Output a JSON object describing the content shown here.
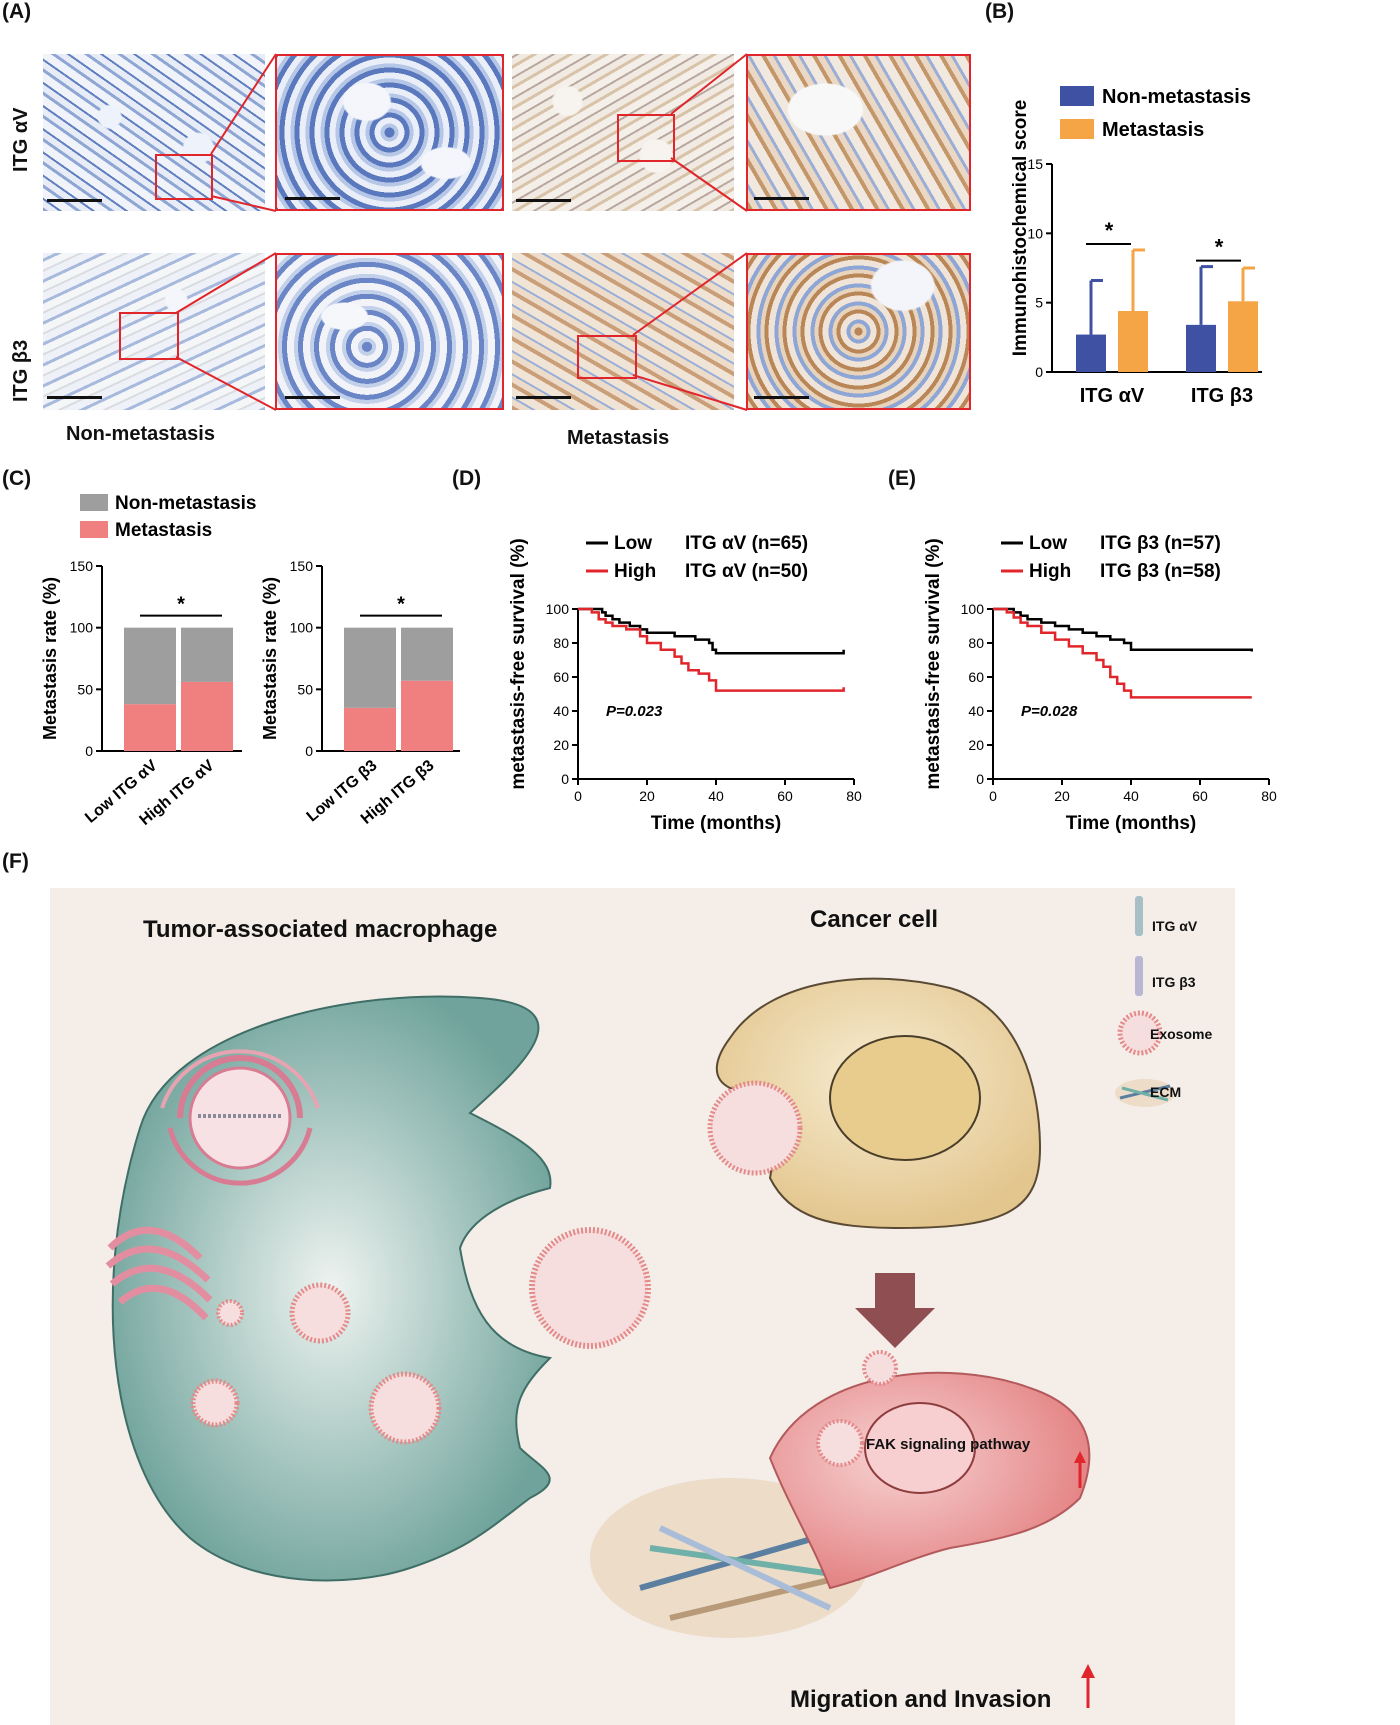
{
  "panels": {
    "a": "(A)",
    "b": "(B)",
    "c": "(C)",
    "d": "(D)",
    "e": "(E)",
    "f": "(F)"
  },
  "panel_a": {
    "row_labels": [
      "ITG αV",
      "ITG β3"
    ],
    "captions": [
      "Non-metastasis",
      "Metastasis"
    ],
    "colors": {
      "blue_stain": "#6d8bc4",
      "brown_stain": "#c9a074",
      "zoom_box": "#e0262b"
    }
  },
  "chart_data": [
    {
      "id": "B",
      "type": "bar",
      "categories": [
        "ITG αV",
        "ITG β3"
      ],
      "series": [
        {
          "name": "Non-metastasis",
          "values": [
            2.7,
            3.4
          ],
          "error": [
            3.9,
            4.2
          ],
          "color": "#3f51a3"
        },
        {
          "name": "Metastasis",
          "values": [
            4.4,
            5.1
          ],
          "error": [
            4.4,
            2.4
          ],
          "color": "#f5a545"
        }
      ],
      "ylabel": "Immunohistochemical score",
      "ylim": [
        0,
        15
      ],
      "yticks": [
        0,
        5,
        10,
        15
      ],
      "significance": [
        "*",
        "*"
      ],
      "legend": "top"
    },
    {
      "id": "C1",
      "type": "bar",
      "stacked": true,
      "categories": [
        "Low ITG αV",
        "High ITG αV"
      ],
      "series": [
        {
          "name": "Metastasis",
          "values": [
            38,
            56
          ],
          "color": "#f08080"
        },
        {
          "name": "Non-metastasis",
          "values": [
            62,
            44
          ],
          "color": "#9e9e9e"
        }
      ],
      "ylabel": "Metastasis rate (%)",
      "ylim": [
        0,
        150
      ],
      "yticks": [
        0,
        50,
        100,
        150
      ],
      "significance": "*",
      "legend_labels": [
        "Non-metastasis",
        "Metastasis"
      ]
    },
    {
      "id": "C2",
      "type": "bar",
      "stacked": true,
      "categories": [
        "Low ITG β3",
        "High ITG β3"
      ],
      "series": [
        {
          "name": "Metastasis",
          "values": [
            35,
            57
          ],
          "color": "#f08080"
        },
        {
          "name": "Non-metastasis",
          "values": [
            65,
            43
          ],
          "color": "#9e9e9e"
        }
      ],
      "ylabel": "Metastasis rate (%)",
      "ylim": [
        0,
        150
      ],
      "yticks": [
        0,
        50,
        100,
        150
      ],
      "significance": "*"
    },
    {
      "id": "D",
      "type": "line",
      "xlabel": "Time (months)",
      "ylabel": "metastasis-free survival (%)",
      "xlim": [
        0,
        80
      ],
      "ylim": [
        0,
        100
      ],
      "xticks": [
        0,
        20,
        40,
        60,
        80
      ],
      "yticks": [
        0,
        20,
        40,
        60,
        80,
        100
      ],
      "annotation": "P=0.023",
      "series": [
        {
          "name": "Low",
          "label": "ITG αV (n=65)",
          "color": "#000000",
          "x": [
            0,
            7,
            8,
            10,
            12,
            15,
            18,
            20,
            24,
            28,
            34,
            38,
            39,
            40,
            77
          ],
          "y": [
            100,
            98,
            96,
            94,
            92,
            90,
            88,
            86,
            86,
            84,
            82,
            80,
            76,
            74,
            76
          ]
        },
        {
          "name": "High",
          "label": "ITG αV (n=50)",
          "color": "#e0262b",
          "x": [
            0,
            4,
            6,
            8,
            10,
            14,
            18,
            20,
            24,
            28,
            30,
            32,
            35,
            38,
            40,
            77
          ],
          "y": [
            100,
            98,
            94,
            92,
            90,
            88,
            84,
            80,
            76,
            72,
            68,
            64,
            62,
            58,
            52,
            54
          ]
        }
      ]
    },
    {
      "id": "E",
      "type": "line",
      "xlabel": "Time (months)",
      "ylabel": "metastasis-free survival (%)",
      "xlim": [
        0,
        80
      ],
      "ylim": [
        0,
        100
      ],
      "xticks": [
        0,
        20,
        40,
        60,
        80
      ],
      "yticks": [
        0,
        20,
        40,
        60,
        80,
        100
      ],
      "annotation": "P=0.028",
      "series": [
        {
          "name": "Low",
          "label": "ITG β3 (n=57)",
          "color": "#000000",
          "x": [
            0,
            6,
            8,
            10,
            14,
            18,
            22,
            26,
            30,
            34,
            38,
            40,
            75
          ],
          "y": [
            100,
            98,
            96,
            94,
            92,
            90,
            88,
            86,
            84,
            82,
            80,
            76,
            75
          ]
        },
        {
          "name": "High",
          "label": "ITG β3 (n=58)",
          "color": "#e0262b",
          "x": [
            0,
            4,
            6,
            8,
            10,
            14,
            18,
            22,
            26,
            30,
            32,
            34,
            36,
            38,
            40,
            75
          ],
          "y": [
            100,
            98,
            95,
            92,
            90,
            86,
            82,
            78,
            74,
            70,
            66,
            60,
            56,
            52,
            48,
            48
          ]
        }
      ]
    }
  ],
  "panel_f": {
    "title_left": "Tumor-associated macrophage",
    "title_right": "Cancer cell",
    "legend": [
      "ITG αV",
      "ITG β3",
      "Exosome",
      "ECM"
    ],
    "pathway": "FAK signaling pathway",
    "outcome": "Migration and Invasion",
    "colors": {
      "background": "#f4ede8",
      "macrophage": "#79aca4",
      "cancer_cell": "#ecd6a8",
      "invading_cell": "#eb8e8e",
      "exosome": "#e48a8a",
      "arrow": "#8e4e52"
    }
  }
}
